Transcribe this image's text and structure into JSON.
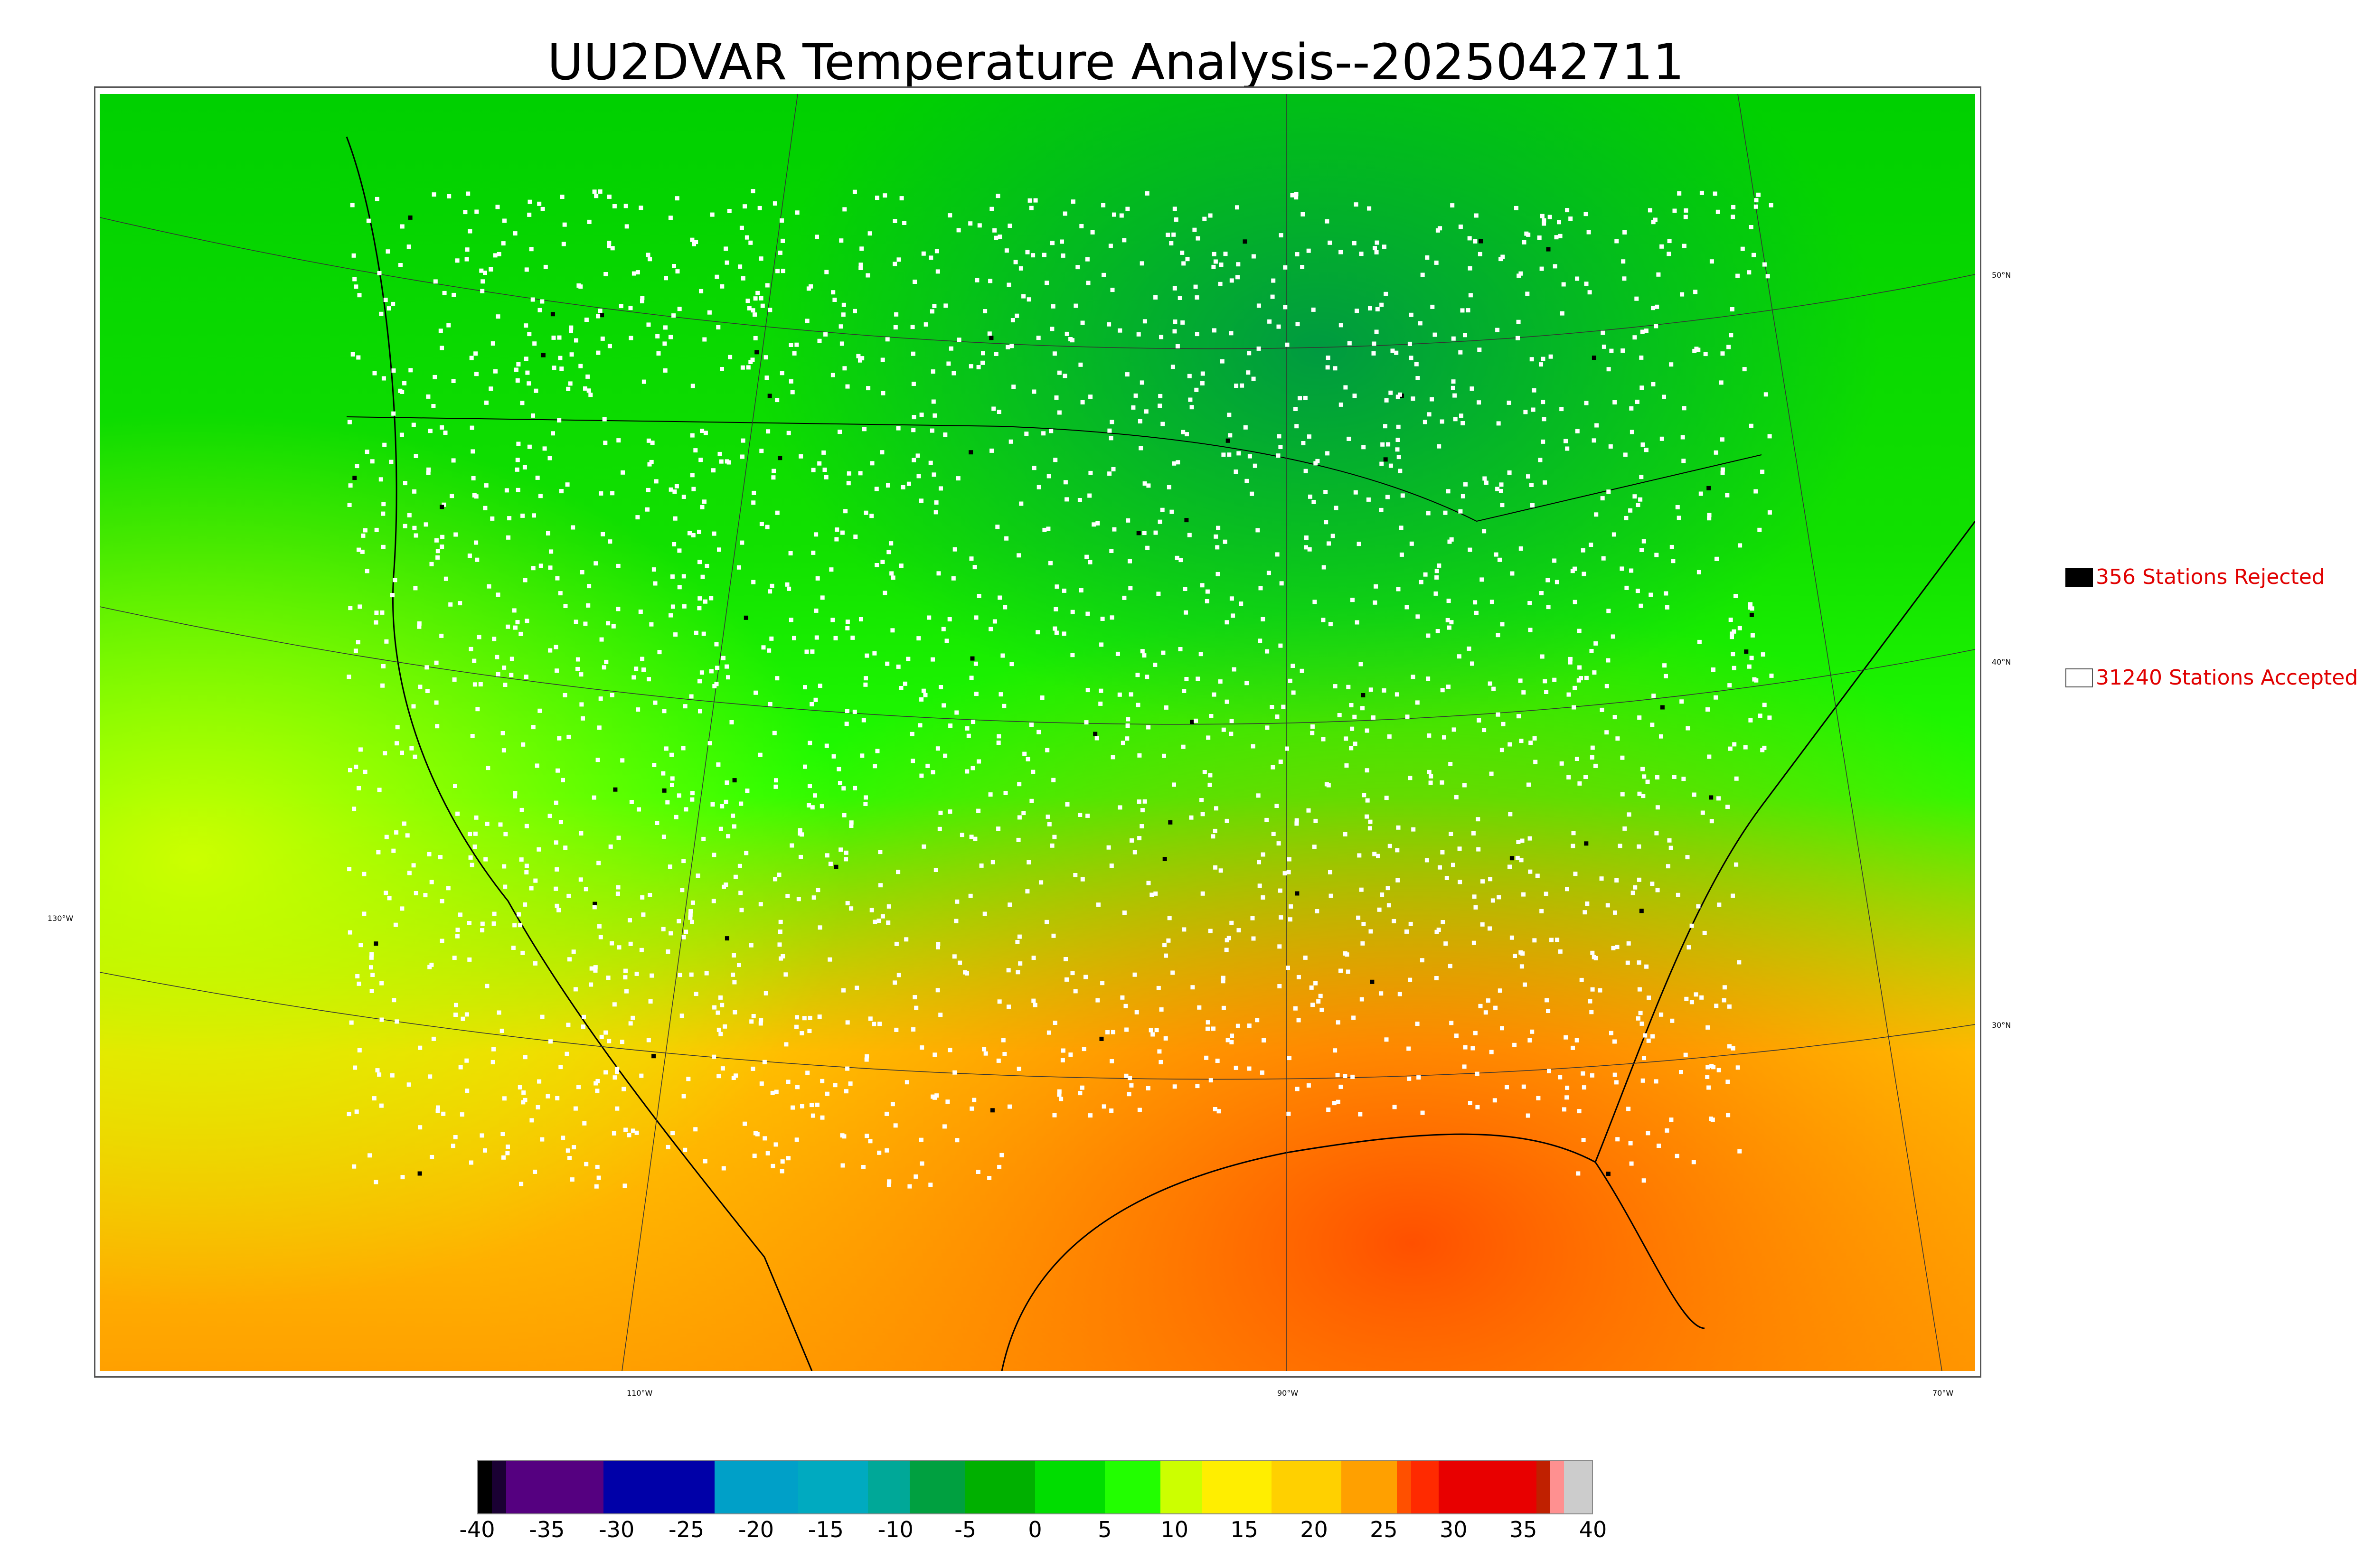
{
  "title": "UU2DVAR Temperature Analysis--2025042711",
  "legend": {
    "rejected": {
      "label": "356 Stations Rejected",
      "swatch_color": "#000000"
    },
    "accepted": {
      "label": "31240 Stations Accepted",
      "swatch_color": "#ffffff"
    }
  },
  "axis_labels": {
    "lon": [
      "110°W",
      "90°W",
      "70°W"
    ],
    "lat_right": [
      "50°N",
      "40°N",
      "30°N"
    ],
    "lon_left": [
      "130°W"
    ]
  },
  "colorbar": {
    "ticks": [
      "-40",
      "-35",
      "-30",
      "-25",
      "-20",
      "-15",
      "-10",
      "-5",
      "0",
      "5",
      "10",
      "15",
      "20",
      "25",
      "30",
      "35",
      "40"
    ],
    "min": -40,
    "max": 40,
    "bands": [
      {
        "from": -40,
        "to": -39,
        "color": "#000000"
      },
      {
        "from": -39,
        "to": -38,
        "color": "#1a0033"
      },
      {
        "from": -38,
        "to": -31,
        "color": "#550080"
      },
      {
        "from": -31,
        "to": -23,
        "color": "#0000a8"
      },
      {
        "from": -23,
        "to": -17,
        "color": "#00a0c8"
      },
      {
        "from": -17,
        "to": -12,
        "color": "#00aac0"
      },
      {
        "from": -12,
        "to": -9,
        "color": "#00a898"
      },
      {
        "from": -9,
        "to": -5,
        "color": "#00a040"
      },
      {
        "from": -5,
        "to": 0,
        "color": "#00b000"
      },
      {
        "from": 0,
        "to": 5,
        "color": "#00dd00"
      },
      {
        "from": 5,
        "to": 9,
        "color": "#22ff00"
      },
      {
        "from": 9,
        "to": 12,
        "color": "#ccff00"
      },
      {
        "from": 12,
        "to": 17,
        "color": "#ffee00"
      },
      {
        "from": 17,
        "to": 22,
        "color": "#ffd000"
      },
      {
        "from": 22,
        "to": 26,
        "color": "#ffa000"
      },
      {
        "from": 26,
        "to": 27,
        "color": "#ff5000"
      },
      {
        "from": 27,
        "to": 29,
        "color": "#ff2a00"
      },
      {
        "from": 29,
        "to": 36,
        "color": "#e80000"
      },
      {
        "from": 36,
        "to": 37,
        "color": "#c02000"
      },
      {
        "from": 37,
        "to": 38,
        "color": "#ff9090"
      },
      {
        "from": 38,
        "to": 40,
        "color": "#cccccc"
      }
    ]
  },
  "map_colors": {
    "cold_north": "#00b000",
    "mid": "#22ff00",
    "warm": "#ffd000",
    "hot_gulf": "#ff5000",
    "pacific": "#ccff00",
    "station_accepted": "#ffffff",
    "station_rejected": "#000000"
  }
}
